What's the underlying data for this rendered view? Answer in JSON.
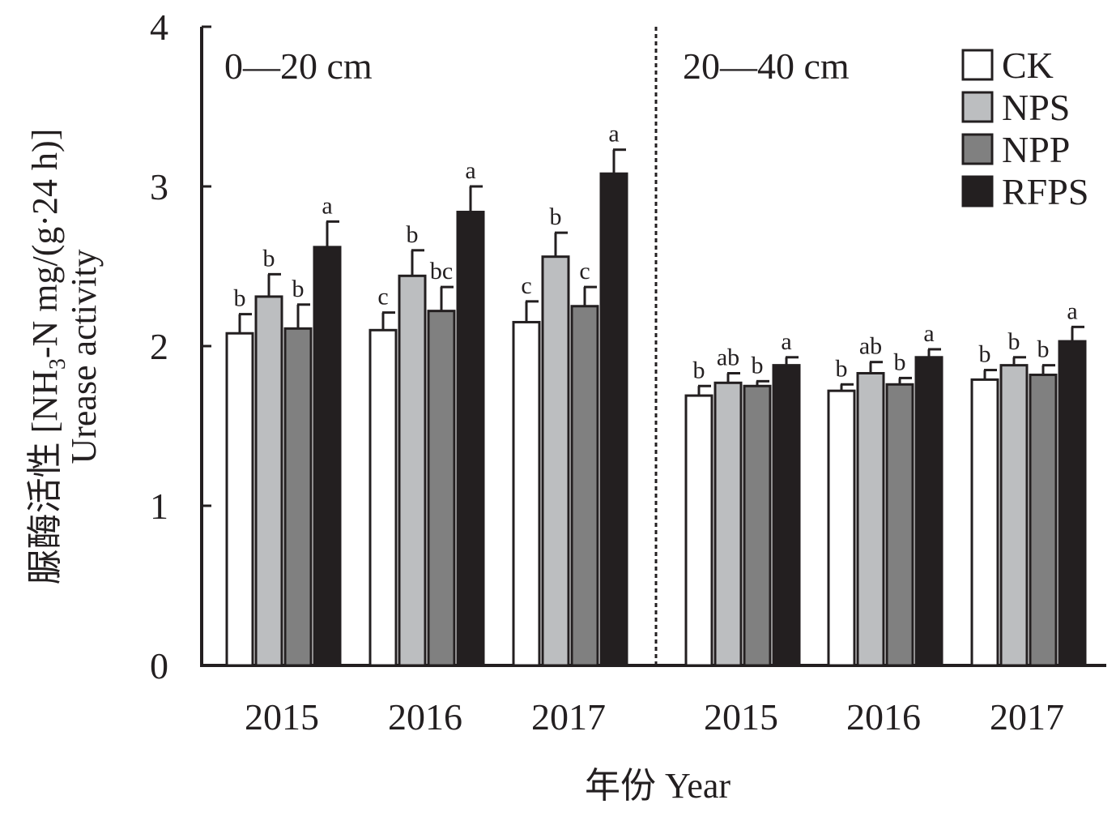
{
  "chart_data": {
    "type": "bar",
    "ylabel_cn": "脲酶活性",
    "ylabel_unit_parts": [
      "[NH",
      "3",
      "-N mg/(g·24 h)]"
    ],
    "ylabel_en": "Urease activity",
    "xlabel": "年份 Year",
    "ylim": [
      0,
      4
    ],
    "yticks": [
      "0",
      "1",
      "2",
      "3",
      "4"
    ],
    "series": [
      {
        "name": "CK",
        "color": "#ffffff"
      },
      {
        "name": "NPS",
        "color": "#bcbec0"
      },
      {
        "name": "NPP",
        "color": "#808080"
      },
      {
        "name": "RFPS",
        "color": "#231f20"
      }
    ],
    "panels": [
      {
        "label": "0—20 cm",
        "groups": [
          {
            "year": "2015",
            "values": [
              2.08,
              2.31,
              2.11,
              2.62
            ],
            "errors": [
              0.12,
              0.14,
              0.15,
              0.16
            ],
            "letters": [
              "b",
              "b",
              "b",
              "a"
            ]
          },
          {
            "year": "2016",
            "values": [
              2.1,
              2.44,
              2.22,
              2.84
            ],
            "errors": [
              0.11,
              0.16,
              0.15,
              0.16
            ],
            "letters": [
              "c",
              "b",
              "bc",
              "a"
            ]
          },
          {
            "year": "2017",
            "values": [
              2.15,
              2.56,
              2.25,
              3.08
            ],
            "errors": [
              0.13,
              0.15,
              0.12,
              0.15
            ],
            "letters": [
              "c",
              "b",
              "c",
              "a"
            ]
          }
        ]
      },
      {
        "label": "20—40 cm",
        "groups": [
          {
            "year": "2015",
            "values": [
              1.69,
              1.77,
              1.75,
              1.88
            ],
            "errors": [
              0.06,
              0.06,
              0.03,
              0.05
            ],
            "letters": [
              "b",
              "ab",
              "b",
              "a"
            ]
          },
          {
            "year": "2016",
            "values": [
              1.72,
              1.83,
              1.76,
              1.93
            ],
            "errors": [
              0.04,
              0.07,
              0.04,
              0.05
            ],
            "letters": [
              "b",
              "ab",
              "b",
              "a"
            ]
          },
          {
            "year": "2017",
            "values": [
              1.79,
              1.88,
              1.82,
              2.03
            ],
            "errors": [
              0.06,
              0.05,
              0.06,
              0.09
            ],
            "letters": [
              "b",
              "b",
              "b",
              "a"
            ]
          }
        ]
      }
    ]
  }
}
